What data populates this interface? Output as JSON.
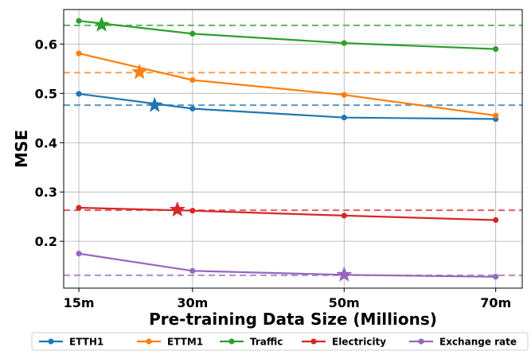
{
  "chart_data": {
    "type": "line",
    "title": "",
    "xlabel": "Pre-training Data Size (Millions)",
    "ylabel": "MSE",
    "categories": [
      "15m",
      "30m",
      "50m",
      "70m"
    ],
    "x": [
      15,
      30,
      50,
      70
    ],
    "xlim": [
      13,
      73.5
    ],
    "ylim": [
      0.105,
      0.67
    ],
    "yticks": [
      0.2,
      0.3,
      0.4,
      0.5,
      0.6
    ],
    "ytick_labels": [
      "0.2",
      "0.3",
      "0.4",
      "0.5",
      "0.6"
    ],
    "grid": true,
    "legend_placement": "bottom, outside plot",
    "series": [
      {
        "name": "ETTH1",
        "color": "#1f77b4",
        "values": [
          0.499,
          0.469,
          0.451,
          0.448
        ],
        "reference": 0.476,
        "star": {
          "x": 25,
          "y": 0.476
        }
      },
      {
        "name": "ETTM1",
        "color": "#ff7f0e",
        "values": [
          0.581,
          0.527,
          0.497,
          0.455
        ],
        "reference": 0.542,
        "star": {
          "x": 23,
          "y": 0.543
        }
      },
      {
        "name": "Traffic",
        "color": "#2ca02c",
        "values": [
          0.647,
          0.621,
          0.602,
          0.59
        ],
        "reference": 0.638,
        "star": {
          "x": 18,
          "y": 0.639
        }
      },
      {
        "name": "Electricity",
        "color": "#d62728",
        "values": [
          0.268,
          0.262,
          0.252,
          0.243
        ],
        "reference": 0.263,
        "star": {
          "x": 28,
          "y": 0.264
        }
      },
      {
        "name": "Exchange rate",
        "color": "#9467bd",
        "values": [
          0.175,
          0.14,
          0.132,
          0.128
        ],
        "reference": 0.131,
        "star": {
          "x": 50,
          "y": 0.132
        }
      }
    ]
  }
}
